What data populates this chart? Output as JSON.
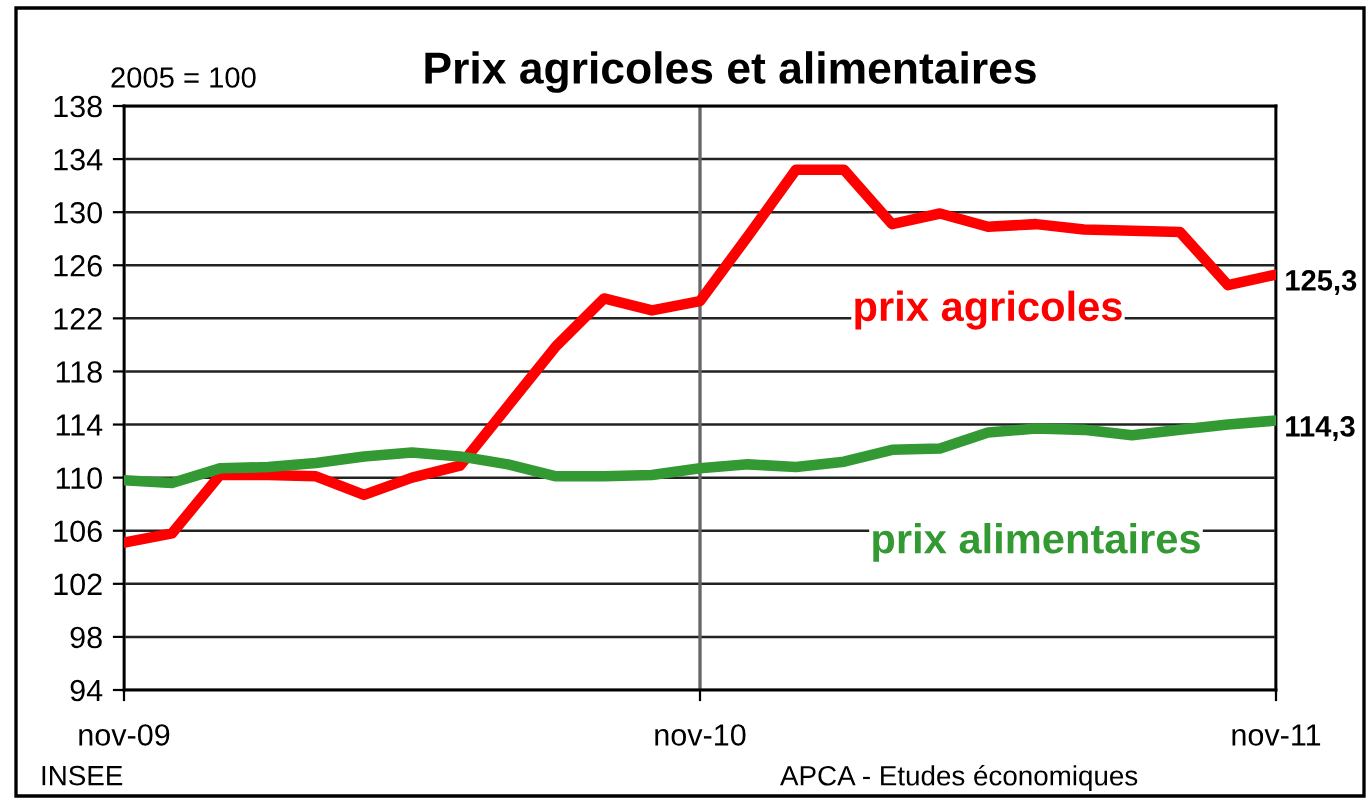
{
  "chart_data": {
    "type": "line",
    "title": "Prix agricoles et alimentaires",
    "ylabel": "2005 = 100",
    "categories": [
      "nov-09",
      null,
      null,
      null,
      null,
      null,
      null,
      null,
      null,
      null,
      null,
      null,
      "nov-10",
      null,
      null,
      null,
      null,
      null,
      null,
      null,
      null,
      null,
      null,
      null,
      "nov-11"
    ],
    "series": [
      {
        "name": "prix agricoles",
        "color": "#ff0000",
        "values": [
          105.1,
          105.8,
          110.2,
          110.2,
          110.1,
          108.7,
          110.0,
          110.9,
          115.4,
          119.9,
          123.5,
          122.6,
          123.3,
          128.2,
          133.2,
          133.2,
          129.1,
          129.9,
          128.9,
          129.1,
          128.7,
          128.6,
          128.5,
          124.5,
          125.3
        ],
        "value_labels": [
          null,
          null,
          null,
          null,
          null,
          null,
          null,
          null,
          null,
          null,
          null,
          null,
          null,
          null,
          null,
          null,
          null,
          null,
          null,
          null,
          null,
          null,
          null,
          null,
          "125,3"
        ]
      },
      {
        "name": "prix alimentaires",
        "color": "#339933",
        "values": [
          109.8,
          109.6,
          110.7,
          110.8,
          111.1,
          111.6,
          111.9,
          111.6,
          111.0,
          110.1,
          110.1,
          110.2,
          110.7,
          111.0,
          110.8,
          111.2,
          112.1,
          112.2,
          113.4,
          113.7,
          113.6,
          113.2,
          113.6,
          114.0,
          114.3
        ],
        "value_labels": [
          null,
          null,
          null,
          null,
          null,
          null,
          null,
          null,
          null,
          null,
          null,
          null,
          null,
          null,
          null,
          null,
          null,
          null,
          null,
          null,
          null,
          null,
          null,
          null,
          "114,3"
        ]
      }
    ],
    "ylim": [
      94,
      138
    ],
    "yticks": [
      94,
      98,
      102,
      106,
      110,
      114,
      118,
      122,
      126,
      130,
      134,
      138
    ],
    "grid": true,
    "legend": false,
    "marker": "none",
    "line_style": "solid",
    "annotations": [
      "INSEE",
      "APCA - Etudes économiques"
    ]
  }
}
